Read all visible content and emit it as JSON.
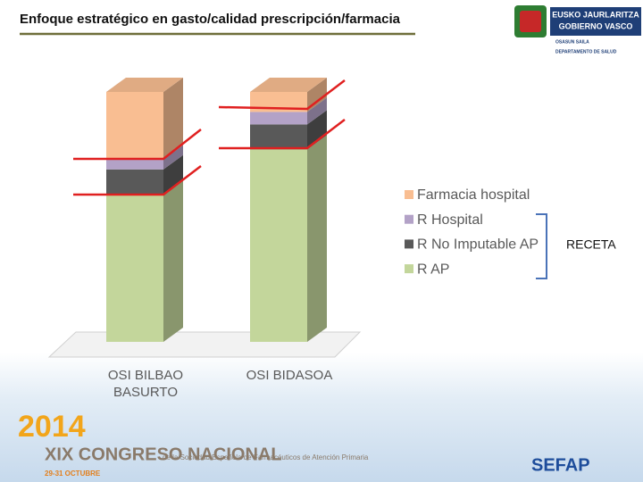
{
  "header": {
    "title": "Enfoque estratégico en gasto/calidad prescripción/farmacia",
    "logo_line1": "EUSKO JAURLARITZA",
    "logo_line2": "GOBIERNO VASCO",
    "dept_line1": "OSASUN SAILA",
    "dept_line2": "DEPARTAMENTO DE SALUD"
  },
  "chart_data": {
    "type": "stacked_bar_3d",
    "categories": [
      "OSI BILBAO BASURTO",
      "OSI BIDASOA"
    ],
    "series": [
      {
        "name": "R AP",
        "color": "#c3d69b",
        "values": [
          59,
          77
        ]
      },
      {
        "name": "R No Imputable AP",
        "color": "#595959",
        "values": [
          10,
          10
        ]
      },
      {
        "name": "R Hospital",
        "color": "#b3a2c7",
        "values": [
          4,
          5
        ]
      },
      {
        "name": "Farmacia hospital",
        "color": "#f9be92",
        "values": [
          27,
          8
        ]
      }
    ],
    "legend": "right",
    "annotation": "RECETA"
  },
  "footer": {
    "congress_year": "2014",
    "congress_name": "XIX CONGRESO NACIONAL",
    "congress_sub": "de la Sociedad Española de Farmacéuticos de Atención Primaria",
    "congress_dates": "29-31 OCTUBRE",
    "sefap": "SEFAP"
  }
}
